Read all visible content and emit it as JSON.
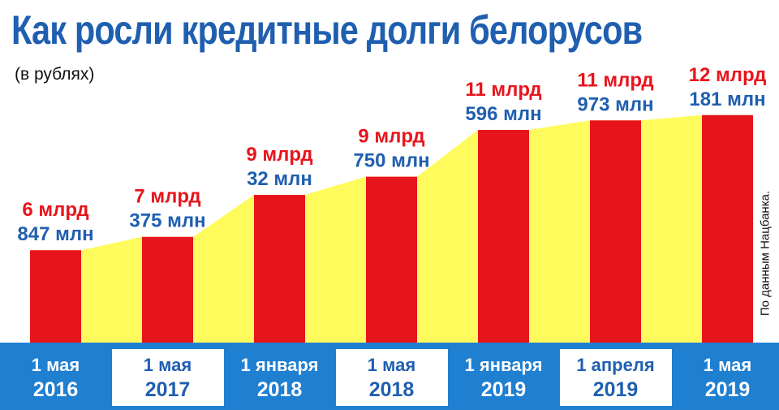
{
  "title": "Как росли кредитные долги белорусов",
  "subtitle": "(в рублях)",
  "source": "По данным Нацбанка.",
  "colors": {
    "title": "#1f5fb0",
    "bar": "#e8141b",
    "area": "#fffb5c",
    "axis_band": "#1f7fd0",
    "label_primary": "#e8141b",
    "label_secondary": "#1f5fb0"
  },
  "chart_data": {
    "type": "bar",
    "title": "Как росли кредитные долги белорусов",
    "subtitle": "(в рублях)",
    "unit": "рублей",
    "categories": [
      {
        "date": "1 мая",
        "year": "2016"
      },
      {
        "date": "1 мая",
        "year": "2017"
      },
      {
        "date": "1 января",
        "year": "2018"
      },
      {
        "date": "1 мая",
        "year": "2018"
      },
      {
        "date": "1 января",
        "year": "2019"
      },
      {
        "date": "1 апреля",
        "year": "2019"
      },
      {
        "date": "1 мая",
        "year": "2019"
      }
    ],
    "values": [
      6.847,
      7.375,
      9.032,
      9.75,
      11.596,
      11.973,
      12.181
    ],
    "value_labels": [
      {
        "line1": "6 млрд",
        "line2": "847 млн"
      },
      {
        "line1": "7 млрд",
        "line2": "375 млн"
      },
      {
        "line1": "9 млрд",
        "line2": "32 млн"
      },
      {
        "line1": "9 млрд",
        "line2": "750 млн"
      },
      {
        "line1": "11 млрд",
        "line2": "596 млн"
      },
      {
        "line1": "11 млрд",
        "line2": "973 млн"
      },
      {
        "line1": "12 млрд",
        "line2": "181 млн"
      }
    ],
    "background_area": true,
    "grid": false,
    "legend": "none"
  }
}
